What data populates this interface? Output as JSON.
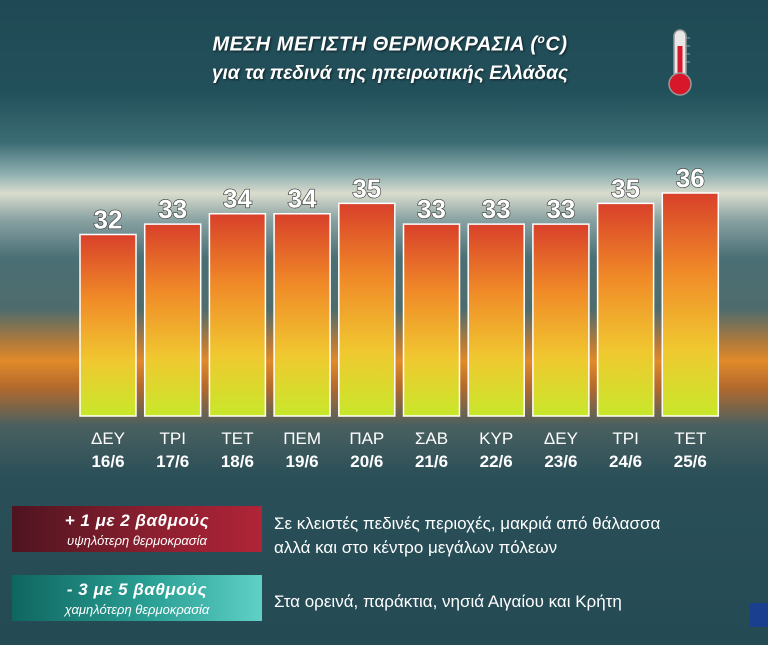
{
  "title_line1": "ΜΕΣΗ ΜΕΓΙΣΤΗ ΘΕΡΜΟΚΡΑΣΙΑ (",
  "title_degree": "o",
  "title_line1_end": "C)",
  "title_line2": "για τα πεδινά της ηπειρωτικής Ελλάδας",
  "chart_data": {
    "type": "bar",
    "categories": [
      "ΔΕΥ 16/6",
      "ΤΡΙ 17/6",
      "ΤΕΤ 18/6",
      "ΠΕΜ 19/6",
      "ΠΑΡ 20/6",
      "ΣΑΒ 21/6",
      "ΚΥΡ 22/6",
      "ΔΕΥ 23/6",
      "ΤΡΙ 24/6",
      "ΤΕΤ 25/6"
    ],
    "days": [
      "ΔΕΥ",
      "ΤΡΙ",
      "ΤΕΤ",
      "ΠΕΜ",
      "ΠΑΡ",
      "ΣΑΒ",
      "ΚΥΡ",
      "ΔΕΥ",
      "ΤΡΙ",
      "ΤΕΤ"
    ],
    "dates": [
      "16/6",
      "17/6",
      "18/6",
      "19/6",
      "20/6",
      "21/6",
      "22/6",
      "23/6",
      "24/6",
      "25/6"
    ],
    "values": [
      32,
      33,
      34,
      34,
      35,
      33,
      33,
      33,
      35,
      36
    ],
    "value_labels": [
      "32",
      "33",
      "34",
      "34",
      "35",
      "33",
      "33",
      "33",
      "35",
      "36"
    ],
    "title": "ΜΕΣΗ ΜΕΓΙΣΤΗ ΘΕΡΜΟΚΡΑΣΙΑ (oC)",
    "xlabel": "",
    "ylabel": "",
    "ylim": [
      14.5,
      36
    ],
    "grid": false,
    "bar_gradient": [
      "#d8402a",
      "#f08a28",
      "#f0c830",
      "#c8e82a"
    ]
  },
  "notes": {
    "plus_big": "+  1 με 2 βαθμούς",
    "plus_small": "υψηλότερη θερμοκρασία",
    "plus_text_1": "Σε κλειστές πεδινές περιοχές, μακριά από θάλασσα",
    "plus_text_2": "αλλά και στο κέντρο μεγάλων πόλεων",
    "minus_big": "-  3 με 5 βαθμούς",
    "minus_small": "χαμηλότερη θερμοκρασία",
    "minus_text": "Στα ορεινά, παράκτια, νησιά Αιγαίου και Κρήτη"
  },
  "icons": {
    "thermometer": "thermometer-icon"
  }
}
